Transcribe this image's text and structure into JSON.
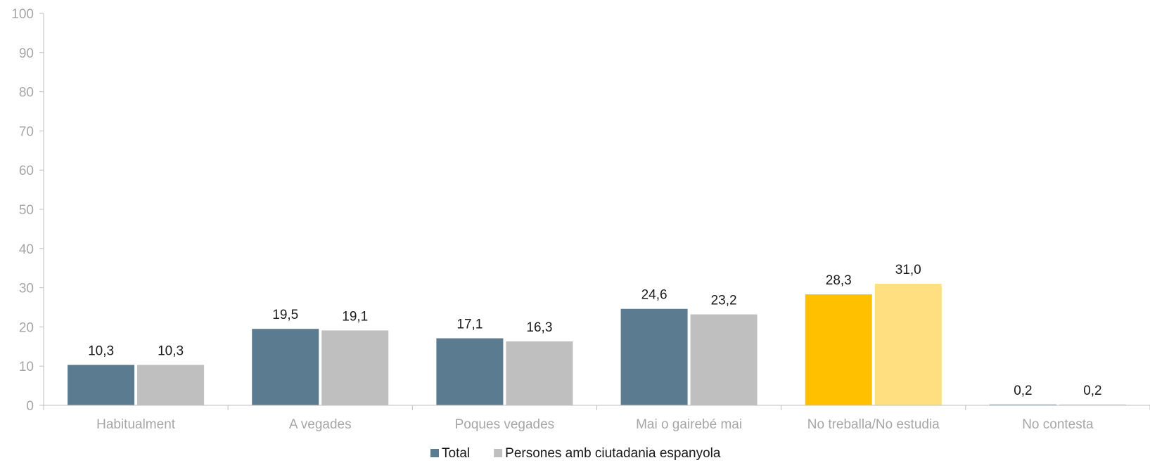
{
  "chart_data": {
    "type": "bar",
    "categories": [
      "Habitualment",
      "A vegades",
      "Poques vegades",
      "Mai o gairebé mai",
      "No treballa/No estudia",
      "No contesta"
    ],
    "series": [
      {
        "name": "Total",
        "values": [
          10.3,
          19.5,
          17.1,
          24.6,
          28.3,
          0.2
        ],
        "value_labels": [
          "10,3",
          "19,5",
          "17,1",
          "24,6",
          "28,3",
          "0,2"
        ]
      },
      {
        "name": "Persones amb ciutadania espanyola",
        "values": [
          10.3,
          19.1,
          16.3,
          23.2,
          31.0,
          0.2
        ],
        "value_labels": [
          "10,3",
          "19,1",
          "16,3",
          "23,2",
          "31,0",
          "0,2"
        ]
      }
    ],
    "colors": {
      "series": [
        "#5b7b90",
        "#bfbfbf"
      ],
      "highlight": [
        "#ffc000",
        "#ffdf80"
      ],
      "highlight_category": "No treballa/No estudia"
    },
    "ylim": [
      0,
      100
    ],
    "yticks": [
      0,
      10,
      20,
      30,
      40,
      50,
      60,
      70,
      80,
      90,
      100
    ],
    "title": "",
    "xlabel": "",
    "ylabel": "",
    "grid": false,
    "legend_position": "bottom-center"
  }
}
